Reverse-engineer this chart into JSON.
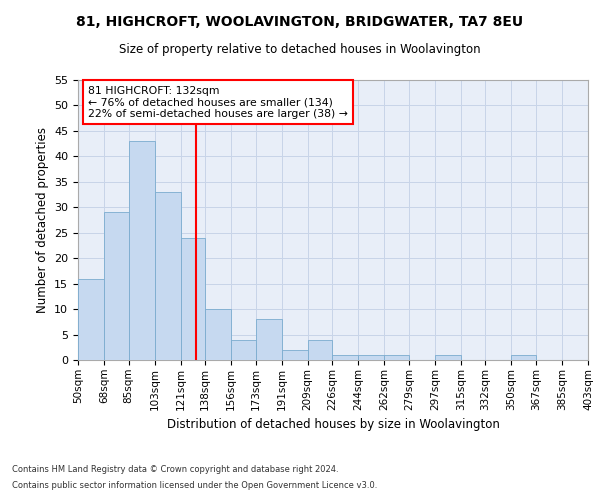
{
  "title": "81, HIGHCROFT, WOOLAVINGTON, BRIDGWATER, TA7 8EU",
  "subtitle": "Size of property relative to detached houses in Woolavington",
  "xlabel": "Distribution of detached houses by size in Woolavington",
  "ylabel": "Number of detached properties",
  "bar_values": [
    16,
    29,
    43,
    33,
    24,
    10,
    4,
    8,
    2,
    4,
    1,
    1,
    1,
    0,
    1,
    0,
    0,
    1,
    0,
    0
  ],
  "bin_edges": [
    50,
    68,
    85,
    103,
    121,
    138,
    156,
    173,
    191,
    209,
    226,
    244,
    262,
    279,
    297,
    315,
    332,
    350,
    367,
    385,
    403
  ],
  "x_tick_labels": [
    "50sqm",
    "68sqm",
    "85sqm",
    "103sqm",
    "121sqm",
    "138sqm",
    "156sqm",
    "173sqm",
    "191sqm",
    "209sqm",
    "226sqm",
    "244sqm",
    "262sqm",
    "279sqm",
    "297sqm",
    "315sqm",
    "332sqm",
    "350sqm",
    "367sqm",
    "385sqm",
    "403sqm"
  ],
  "ylim": [
    0,
    55
  ],
  "bar_color": "#c6d9f0",
  "bar_edge_color": "#7aabcf",
  "grid_color": "#c8d4e8",
  "bg_color": "#e8eef8",
  "red_line_x": 132,
  "annotation_box_text": "81 HIGHCROFT: 132sqm\n← 76% of detached houses are smaller (134)\n22% of semi-detached houses are larger (38) →",
  "footer_line1": "Contains HM Land Registry data © Crown copyright and database right 2024.",
  "footer_line2": "Contains public sector information licensed under the Open Government Licence v3.0."
}
